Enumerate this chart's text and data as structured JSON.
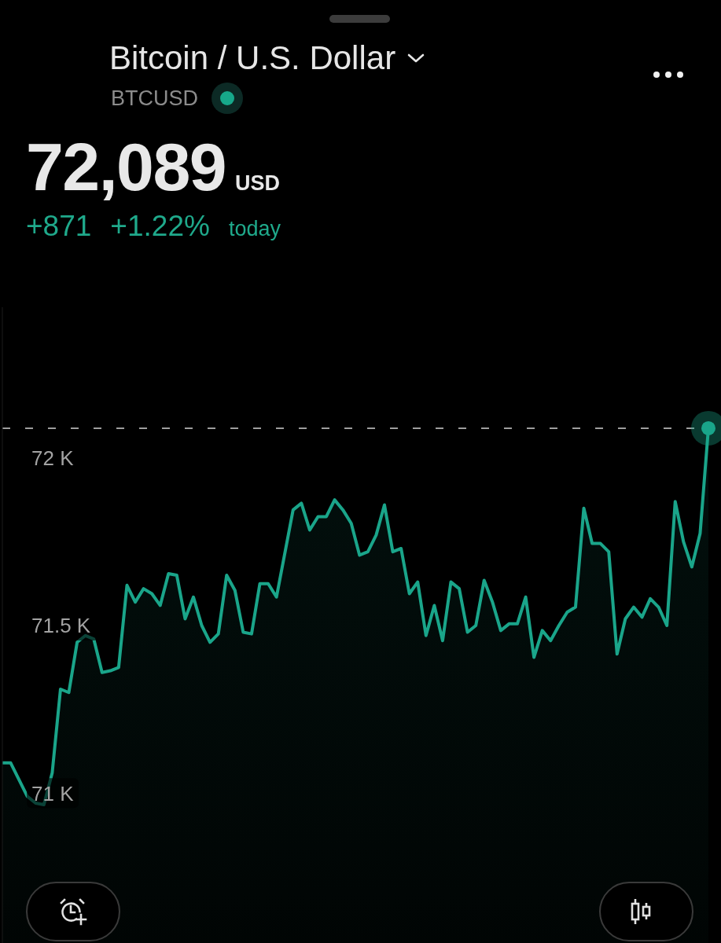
{
  "chart_data": {
    "type": "area",
    "title": "Bitcoin / U.S. Dollar",
    "subtitle": "BTCUSD",
    "annotations": [
      "72,089",
      "USD",
      "+871",
      "+1.22%",
      "today"
    ],
    "categories": [
      null,
      null,
      null,
      null,
      null,
      null,
      null,
      null,
      null,
      null,
      null,
      null,
      null,
      null,
      null,
      null,
      null,
      null,
      null,
      null,
      null,
      null,
      null,
      null,
      null,
      null,
      null,
      null,
      null,
      null,
      null,
      null,
      null,
      null,
      null,
      null,
      null,
      null,
      null,
      null,
      null,
      null,
      null,
      null,
      null,
      null,
      null,
      null,
      null,
      null,
      null,
      null,
      null,
      null,
      null,
      null,
      null,
      null,
      null,
      null,
      null,
      null,
      null,
      null,
      null,
      null,
      null,
      null,
      null,
      null,
      null,
      null,
      null,
      null,
      null,
      null,
      null,
      null,
      null,
      null,
      null,
      null,
      null,
      null,
      null,
      null
    ],
    "series": [
      {
        "color": "#1aa58a",
        "values": [
          71090,
          71090,
          71040,
          70990,
          70970,
          70965,
          71060,
          71310,
          71300,
          71450,
          71470,
          71460,
          71360,
          71365,
          71375,
          71620,
          71570,
          71610,
          71595,
          71560,
          71655,
          71650,
          71520,
          71585,
          71500,
          71450,
          71475,
          71650,
          71605,
          71480,
          71475,
          71625,
          71625,
          71585,
          71715,
          71845,
          71865,
          71785,
          71825,
          71825,
          71875,
          71845,
          71805,
          71710,
          71720,
          71770,
          71860,
          71720,
          71730,
          71595,
          71630,
          71470,
          71560,
          71455,
          71630,
          71610,
          71480,
          71500,
          71635,
          71570,
          71485,
          71505,
          71505,
          71585,
          71405,
          71485,
          71455,
          71500,
          71540,
          71555,
          71850,
          71745,
          71745,
          71720,
          71415,
          71520,
          71555,
          71525,
          71580,
          71555,
          71500,
          71870,
          71750,
          71675,
          71775,
          72089
        ]
      },
      {
        "type": "scatter",
        "color": "#1aa58a",
        "marker": "circle",
        "values": [
          null,
          null,
          null,
          null,
          null,
          null,
          null,
          null,
          null,
          null,
          null,
          null,
          null,
          null,
          null,
          null,
          null,
          null,
          null,
          null,
          null,
          null,
          null,
          null,
          null,
          null,
          null,
          null,
          null,
          null,
          null,
          null,
          null,
          null,
          null,
          null,
          null,
          null,
          null,
          null,
          null,
          null,
          null,
          null,
          null,
          null,
          null,
          null,
          null,
          null,
          null,
          null,
          null,
          null,
          null,
          null,
          null,
          null,
          null,
          null,
          null,
          null,
          null,
          null,
          null,
          null,
          null,
          null,
          null,
          null,
          null,
          null,
          null,
          null,
          null,
          null,
          null,
          null,
          null,
          null,
          null,
          null,
          null,
          null,
          null,
          72089
        ]
      }
    ],
    "ylim": [
      70550,
      72450
    ],
    "yticks": [
      {
        "value": 71000,
        "label": "71 K"
      },
      {
        "value": 71500,
        "label": "71.5 K"
      },
      {
        "value": 72000,
        "label": "72 K"
      }
    ],
    "ref_lines": [
      {
        "axis": "y",
        "value": 72089,
        "color": "#9e9e9e",
        "line_style": "dashed"
      }
    ],
    "tick_labels": "y"
  }
}
